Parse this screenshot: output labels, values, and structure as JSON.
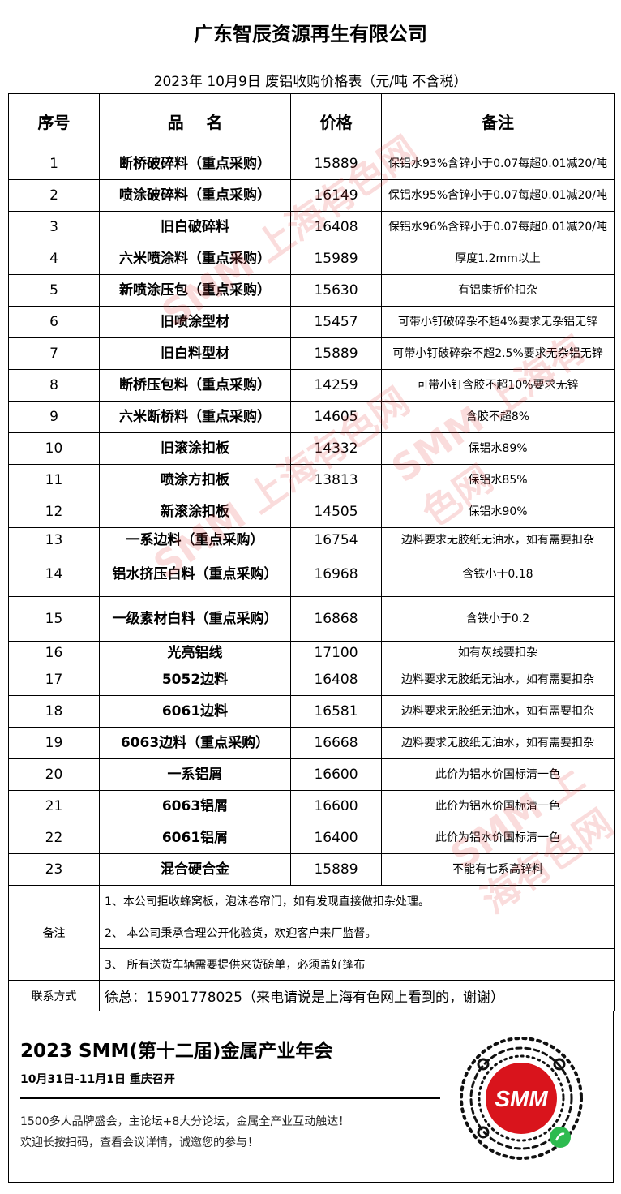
{
  "title": "广东智辰资源再生有限公司",
  "subtitle": "2023年 10月9日 废铝收购价格表（元/吨  不含税）",
  "headers": [
    "序号",
    "品    名",
    "价格",
    "备注"
  ],
  "rows": [
    {
      "no": "1",
      "name": "断桥破碎料（重点采购）",
      "price": "15889",
      "note": "保铝水93%含锌小于0.07每超0.01减20/吨"
    },
    {
      "no": "2",
      "name": "喷涂破碎料（重点采购）",
      "price": "16149",
      "note": "保铝水95%含锌小于0.07每超0.01减20/吨"
    },
    {
      "no": "3",
      "name": "旧白破碎料",
      "price": "16408",
      "note": "保铝水96%含锌小于0.07每超0.01减20/吨"
    },
    {
      "no": "4",
      "name": "六米喷涂料（重点采购）",
      "price": "15989",
      "note": "厚度1.2mm以上"
    },
    {
      "no": "5",
      "name": "新喷涂压包（重点采购）",
      "price": "15630",
      "note": "有铝康折价扣杂"
    },
    {
      "no": "6",
      "name": "旧喷涂型材",
      "price": "15457",
      "note": "可带小钉破碎杂不超4%要求无杂铝无锌"
    },
    {
      "no": "7",
      "name": "旧白料型材",
      "price": "15889",
      "note": "可带小钉破碎杂不超2.5%要求无杂铝无锌"
    },
    {
      "no": "8",
      "name": "断桥压包料（重点采购）",
      "price": "14259",
      "note": "可带小钉含胶不超10%要求无锌"
    },
    {
      "no": "9",
      "name": "六米断桥料（重点采购）",
      "price": "14605",
      "note": "含胶不超8%"
    },
    {
      "no": "10",
      "name": "旧滚涂扣板",
      "price": "14332",
      "note": "保铝水89%"
    },
    {
      "no": "11",
      "name": "喷涂方扣板",
      "price": "13813",
      "note": "保铝水85%"
    },
    {
      "no": "12",
      "name": "新滚涂扣板",
      "price": "14505",
      "note": "保铝水90%"
    },
    {
      "no": "13",
      "name": "一系边料（重点采购）",
      "price": "16754",
      "note": "边料要求无胶纸无油水，如有需要扣杂"
    },
    {
      "no": "14",
      "name": "铝水挤压白料（重点采购）",
      "price": "16968",
      "note": "含铁小于0.18"
    },
    {
      "no": "15",
      "name": "一级素材白料（重点采购）",
      "price": "16868",
      "note": "含铁小于0.2"
    },
    {
      "no": "16",
      "name": "光亮铝线",
      "price": "17100",
      "note": "如有灰线要扣杂"
    },
    {
      "no": "17",
      "name": "5052边料",
      "price": "16408",
      "note": "边料要求无胶纸无油水，如有需要扣杂"
    },
    {
      "no": "18",
      "name": "6061边料",
      "price": "16581",
      "note": "边料要求无胶纸无油水，如有需要扣杂"
    },
    {
      "no": "19",
      "name": "6063边料（重点采购）",
      "price": "16668",
      "note": "边料要求无胶纸无油水，如有需要扣杂"
    },
    {
      "no": "20",
      "name": "一系铝屑",
      "price": "16600",
      "note": "此价为铝水价国标清一色"
    },
    {
      "no": "21",
      "name": "6063铝屑",
      "price": "16600",
      "note": "此价为铝水价国标清一色"
    },
    {
      "no": "22",
      "name": "6061铝屑",
      "price": "16400",
      "note": "此价为铝水价国标清一色"
    },
    {
      "no": "23",
      "name": "混合硬合金",
      "price": "15889",
      "note": "不能有七系高锌料"
    }
  ],
  "remarks_label": "备注",
  "remarks": [
    "1、本公司拒收蜂窝板，泡沫卷帘门，如有发现直接做扣杂处理。",
    "2、 本公司秉承合理公开化验货，欢迎客户来厂监督。",
    "3、 所有送货车辆需要提供来货磅单，必须盖好篷布"
  ],
  "contact_label": "联系方式",
  "contact": "徐总：15901778025（来电请说是上海有色网上看到的，谢谢）",
  "banner": {
    "title": "2023 SMM(第十二届)金属产业年会",
    "date": "10月31日-11月1日  重庆召开",
    "line1": "1500多人品牌盛会，主论坛+8大分论坛，金属全产业互动触达！",
    "line2": "欢迎长按扫码，查看会议详情，诚邀您的参与！",
    "qr_logo": "SMM"
  },
  "watermark": "SMM 上海有色网",
  "colors": {
    "logo_red": "#d9141c",
    "miniprogram_green": "#2dbb4f"
  }
}
